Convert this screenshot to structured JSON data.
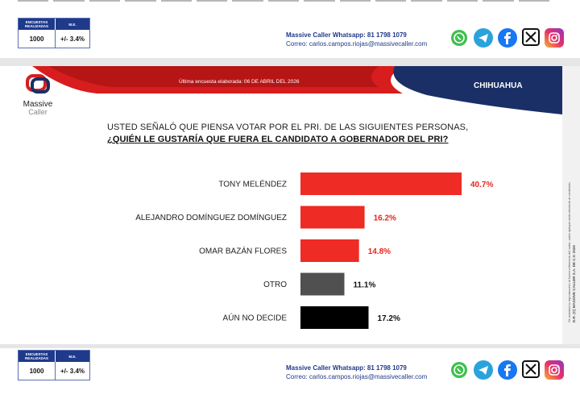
{
  "stats": {
    "header_surveys": "ENCUESTAS REALIZADAS",
    "header_error": "M.E.",
    "surveys": "1000",
    "error": "+/- 3.4%"
  },
  "contact": {
    "whatsapp": "Massive Caller Whatsapp: 81 1798 1079",
    "email": "Correo: carlos.campos.riojas@massivecaller.com"
  },
  "socials": [
    "whatsapp-icon",
    "telegram-icon",
    "facebook-icon",
    "x-icon",
    "instagram-icon"
  ],
  "header": {
    "date_label": "Última encuesta elaborada: 06 DE ABRIL DEL 2026",
    "region": "CHIHUAHUA",
    "brand_top": "Massive",
    "brand_bottom": "Caller"
  },
  "question": {
    "line1": "USTED SEÑALÓ QUE PIENSA VOTAR POR EL PRI. DE LAS SIGUIENTES PERSONAS,",
    "line2": "¿QUIÉN LE GUSTARÍA QUE FUERA EL CANDIDATO A GOBERNADOR DEL PRI?"
  },
  "side_note": {
    "copyright": "D.R. (C) MASSIVE CALLER S.A. DE C.V. 2026",
    "disclaimer": "Se autoriza la reproducción al hacer referencia del autor, salvo aplique veda electoral al contenido"
  },
  "chart_data": {
    "type": "bar",
    "orientation": "horizontal",
    "categories": [
      "TONY MELÉNDEZ",
      "ALEJANDRO DOMÍNGUEZ DOMÍNGUEZ",
      "OMAR BAZÁN FLORES",
      "OTRO",
      "AÚN NO DECIDE"
    ],
    "values": [
      40.7,
      16.2,
      14.8,
      11.1,
      17.2
    ],
    "value_labels": [
      "40.7%",
      "16.2%",
      "14.8%",
      "11.1%",
      "17.2%"
    ],
    "colors": [
      "#ee2b24",
      "#ee2b24",
      "#ee2b24",
      "#505050",
      "#000000"
    ],
    "label_colors": [
      "#e8251f",
      "#e8251f",
      "#e8251f",
      "#111111",
      "#111111"
    ],
    "xlim": [
      0,
      40.7
    ],
    "grid": false,
    "legend": "none"
  }
}
